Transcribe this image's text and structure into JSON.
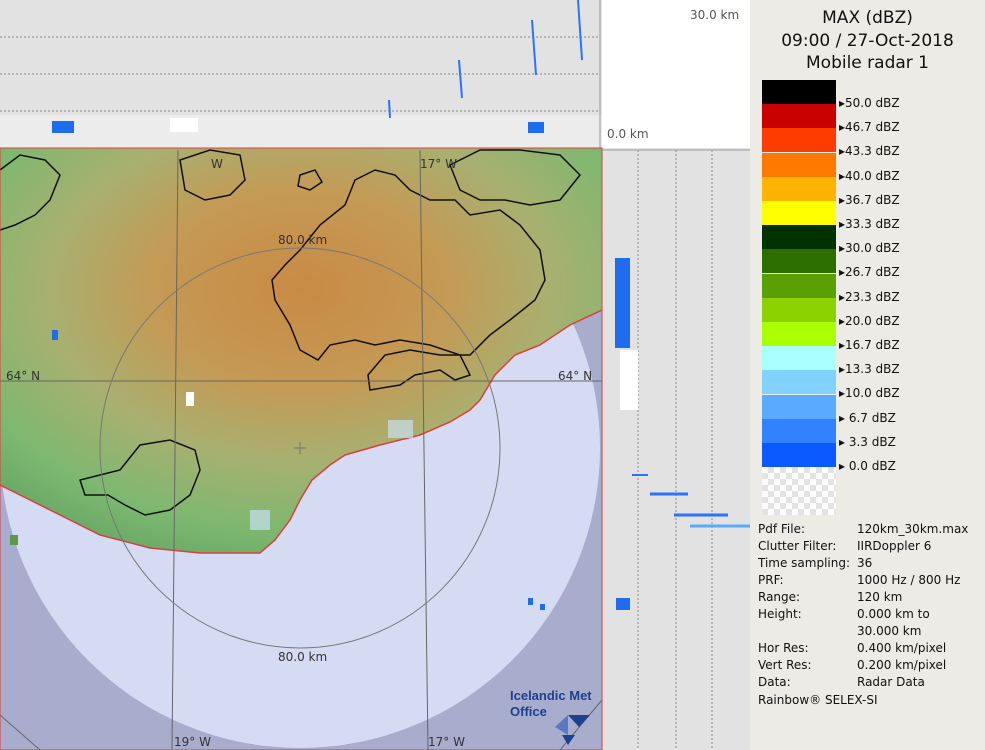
{
  "header": {
    "product": "MAX (dBZ)",
    "datetime": "09:00 / 27-Oct-2018",
    "radar": "Mobile radar 1"
  },
  "legend": {
    "items": [
      {
        "label": "50.0 dBZ",
        "color": "#000000"
      },
      {
        "label": "46.7 dBZ",
        "color": "#c80000"
      },
      {
        "label": "43.3 dBZ",
        "color": "#ff3c00"
      },
      {
        "label": "40.0 dBZ",
        "color": "#ff7800"
      },
      {
        "label": "36.7 dBZ",
        "color": "#ffb400"
      },
      {
        "label": "33.3 dBZ",
        "color": "#ffff00"
      },
      {
        "label": "30.0 dBZ",
        "color": "#003200"
      },
      {
        "label": "26.7 dBZ",
        "color": "#2d6e00"
      },
      {
        "label": "23.3 dBZ",
        "color": "#5aa000"
      },
      {
        "label": "20.0 dBZ",
        "color": "#8cd200"
      },
      {
        "label": "16.7 dBZ",
        "color": "#aaff00"
      },
      {
        "label": "13.3 dBZ",
        "color": "#aaffff"
      },
      {
        "label": "10.0 dBZ",
        "color": "#82d2ff"
      },
      {
        "label": "6.7 dBZ",
        "color": "#5aaaff"
      },
      {
        "label": "3.3 dBZ",
        "color": "#3282ff"
      },
      {
        "label": "0.0 dBZ",
        "color": "#0a5aff"
      }
    ]
  },
  "info": {
    "rows": [
      {
        "label": "Pdf File:",
        "value": "120km_30km.max"
      },
      {
        "label": "Clutter Filter:",
        "value": "IIRDoppler 6"
      },
      {
        "label": "Time sampling:",
        "value": "36"
      },
      {
        "label": "PRF:",
        "value": "1000 Hz / 800 Hz"
      },
      {
        "label": "Range:",
        "value": "120 km"
      },
      {
        "label": "Height:",
        "value": "0.000 km to"
      },
      {
        "label": "",
        "value": "30.000 km"
      },
      {
        "label": "Hor Res:",
        "value": "0.400 km/pixel"
      },
      {
        "label": "Vert Res:",
        "value": "0.200 km/pixel"
      },
      {
        "label": "Data:",
        "value": "Radar Data"
      }
    ],
    "footer": "Rainbow® SELEX-SI"
  },
  "map": {
    "range_ring_label_top": "80.0 km",
    "range_ring_label_bottom": "80.0 km",
    "lat_label_left": "64° N",
    "lat_label_right": "64° N",
    "lon_label_bottom_left": "19° W",
    "lon_label_bottom_right": "17° W",
    "lon_label_top_left": "W",
    "lon_label_top_right": "17° W",
    "height_label_top": "30.0 km",
    "height_label_zero": "0.0 km",
    "logo_line1": "Icelandic Met",
    "logo_line2": "Office"
  }
}
